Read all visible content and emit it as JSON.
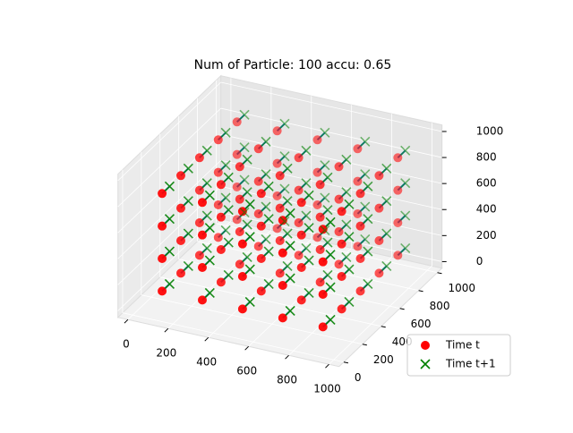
{
  "chart_data": {
    "type": "scatter3d",
    "title": "Num of Particle: 100 accu: 0.65",
    "xlim": [
      -50,
      1050
    ],
    "ylim": [
      -50,
      1050
    ],
    "zlim": [
      -50,
      1050
    ],
    "xticks": [
      0,
      200,
      400,
      600,
      800,
      1000
    ],
    "yticks": [
      0,
      200,
      400,
      600,
      800,
      1000
    ],
    "zticks": [
      0,
      200,
      400,
      600,
      800,
      1000
    ],
    "grid": true,
    "legend": "lower right",
    "arrow_color": "#1f77b4",
    "series": [
      {
        "name": "Time t",
        "color": "#ff0000",
        "marker": "o",
        "x": [
          100,
          100,
          100,
          100,
          100,
          100,
          100,
          100,
          100,
          100,
          100,
          100,
          100,
          100,
          100,
          100,
          100,
          100,
          100,
          100,
          300,
          300,
          300,
          300,
          300,
          300,
          300,
          300,
          300,
          300,
          300,
          300,
          300,
          300,
          300,
          300,
          300,
          300,
          300,
          300,
          500,
          500,
          500,
          500,
          500,
          500,
          500,
          500,
          500,
          500,
          500,
          500,
          500,
          500,
          500,
          500,
          500,
          500,
          500,
          500,
          700,
          700,
          700,
          700,
          700,
          700,
          700,
          700,
          700,
          700,
          700,
          700,
          700,
          700,
          700,
          700,
          700,
          700,
          700,
          700,
          900,
          900,
          900,
          900,
          900,
          900,
          900,
          900,
          900,
          900,
          900,
          900,
          900,
          900,
          900,
          900,
          900,
          900,
          900,
          900
        ],
        "y": [
          100,
          100,
          100,
          100,
          300,
          300,
          300,
          300,
          500,
          500,
          500,
          500,
          700,
          700,
          700,
          700,
          900,
          900,
          900,
          900,
          100,
          100,
          100,
          100,
          300,
          300,
          300,
          300,
          500,
          500,
          500,
          500,
          700,
          700,
          700,
          700,
          900,
          900,
          900,
          900,
          100,
          100,
          100,
          100,
          300,
          300,
          300,
          300,
          500,
          500,
          500,
          500,
          700,
          700,
          700,
          700,
          900,
          900,
          900,
          900,
          100,
          100,
          100,
          100,
          300,
          300,
          300,
          300,
          500,
          500,
          500,
          500,
          700,
          700,
          700,
          700,
          900,
          900,
          900,
          900,
          100,
          100,
          100,
          100,
          300,
          300,
          300,
          300,
          500,
          500,
          500,
          500,
          700,
          700,
          700,
          700,
          900,
          900,
          900,
          900
        ],
        "z": [
          100,
          350,
          600,
          850,
          100,
          350,
          600,
          850,
          100,
          350,
          600,
          850,
          100,
          350,
          600,
          850,
          100,
          350,
          600,
          850,
          100,
          350,
          600,
          850,
          100,
          350,
          600,
          850,
          100,
          350,
          600,
          850,
          100,
          350,
          600,
          850,
          100,
          350,
          600,
          850,
          100,
          350,
          600,
          850,
          100,
          350,
          600,
          850,
          100,
          350,
          600,
          850,
          100,
          350,
          600,
          850,
          100,
          350,
          600,
          850,
          100,
          350,
          600,
          850,
          100,
          350,
          600,
          850,
          100,
          350,
          600,
          850,
          100,
          350,
          600,
          850,
          100,
          350,
          600,
          850,
          100,
          350,
          600,
          850,
          100,
          350,
          600,
          850,
          100,
          350,
          600,
          850,
          100,
          350,
          600,
          850,
          100,
          350,
          600,
          850
        ]
      },
      {
        "name": "Time t+1",
        "color": "#008000",
        "marker": "x",
        "x": [
          100,
          100,
          100,
          100,
          100,
          100,
          100,
          100,
          100,
          100,
          100,
          100,
          100,
          100,
          100,
          100,
          100,
          100,
          100,
          100,
          300,
          300,
          300,
          300,
          300,
          300,
          300,
          300,
          300,
          300,
          300,
          300,
          300,
          300,
          300,
          300,
          300,
          300,
          300,
          300,
          500,
          500,
          500,
          500,
          500,
          500,
          500,
          500,
          500,
          500,
          500,
          500,
          500,
          500,
          500,
          500,
          500,
          500,
          500,
          500,
          700,
          700,
          700,
          700,
          700,
          700,
          700,
          700,
          700,
          700,
          700,
          700,
          700,
          700,
          700,
          700,
          700,
          700,
          700,
          700,
          900,
          900,
          900,
          900,
          900,
          900,
          900,
          900,
          900,
          900,
          900,
          900,
          900,
          900,
          900,
          900,
          900,
          900,
          900,
          900
        ],
        "y": [
          180,
          180,
          180,
          180,
          380,
          380,
          380,
          380,
          580,
          580,
          580,
          580,
          780,
          780,
          780,
          780,
          980,
          980,
          980,
          980,
          180,
          180,
          180,
          180,
          380,
          380,
          380,
          380,
          580,
          580,
          580,
          580,
          780,
          780,
          780,
          780,
          980,
          980,
          980,
          980,
          180,
          180,
          180,
          180,
          380,
          380,
          380,
          380,
          580,
          580,
          580,
          580,
          780,
          780,
          780,
          780,
          980,
          980,
          980,
          980,
          180,
          180,
          180,
          180,
          380,
          380,
          380,
          380,
          580,
          580,
          580,
          580,
          780,
          780,
          780,
          780,
          980,
          980,
          980,
          980,
          180,
          180,
          180,
          180,
          380,
          380,
          380,
          380,
          580,
          580,
          580,
          580,
          780,
          780,
          780,
          780,
          980,
          980,
          980,
          980
        ],
        "z": [
          100,
          350,
          600,
          850,
          100,
          350,
          600,
          850,
          100,
          350,
          600,
          850,
          100,
          350,
          600,
          850,
          100,
          350,
          600,
          850,
          100,
          350,
          600,
          850,
          100,
          350,
          600,
          850,
          100,
          350,
          600,
          850,
          100,
          350,
          600,
          850,
          100,
          350,
          600,
          850,
          100,
          350,
          600,
          850,
          100,
          350,
          600,
          850,
          100,
          350,
          600,
          850,
          100,
          350,
          600,
          850,
          100,
          350,
          600,
          850,
          100,
          350,
          600,
          850,
          100,
          350,
          600,
          850,
          100,
          350,
          600,
          850,
          100,
          350,
          600,
          850,
          100,
          350,
          600,
          850,
          100,
          350,
          600,
          850,
          100,
          350,
          600,
          850,
          100,
          350,
          600,
          850,
          100,
          350,
          600,
          850,
          100,
          350,
          600,
          850
        ]
      }
    ]
  }
}
